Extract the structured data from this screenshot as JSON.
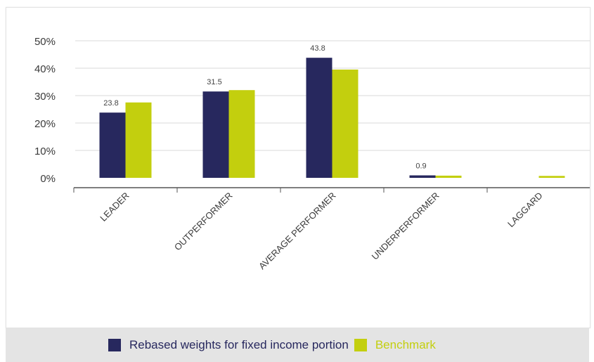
{
  "colors": {
    "series_primary": "#27285e",
    "series_benchmark": "#c3cf0e",
    "gridline": "#dadada",
    "axis": "#555555",
    "legend_background": "#e4e4e4"
  },
  "legend": {
    "items": [
      {
        "label": "Rebased weights for fixed income portion",
        "color": "#27285e",
        "text_color": "#27285e"
      },
      {
        "label": "Benchmark",
        "color": "#c3cf0e",
        "text_color": "#c3cf0e"
      }
    ]
  },
  "chart_data": {
    "type": "bar",
    "title": "",
    "xlabel": "",
    "ylabel": "",
    "categories": [
      "LEADER",
      "OUTPERFORMER",
      "AVERAGE PERFORMER",
      "UNDERPERFORMER",
      "LAGGARD"
    ],
    "series": [
      {
        "name": "Rebased weights for fixed income portion",
        "values": [
          23.8,
          31.5,
          43.8,
          0.9,
          0
        ],
        "data_labels": [
          "23.8",
          "31.5",
          "43.8",
          "0.9",
          ""
        ]
      },
      {
        "name": "Benchmark",
        "values": [
          27.5,
          32,
          39.5,
          0.8,
          0.7
        ]
      }
    ],
    "ylim": [
      0,
      50
    ],
    "yticks": [
      "0%",
      "10%",
      "20%",
      "30%",
      "40%",
      "50%"
    ],
    "grid": true,
    "legend_position": "bottom"
  }
}
